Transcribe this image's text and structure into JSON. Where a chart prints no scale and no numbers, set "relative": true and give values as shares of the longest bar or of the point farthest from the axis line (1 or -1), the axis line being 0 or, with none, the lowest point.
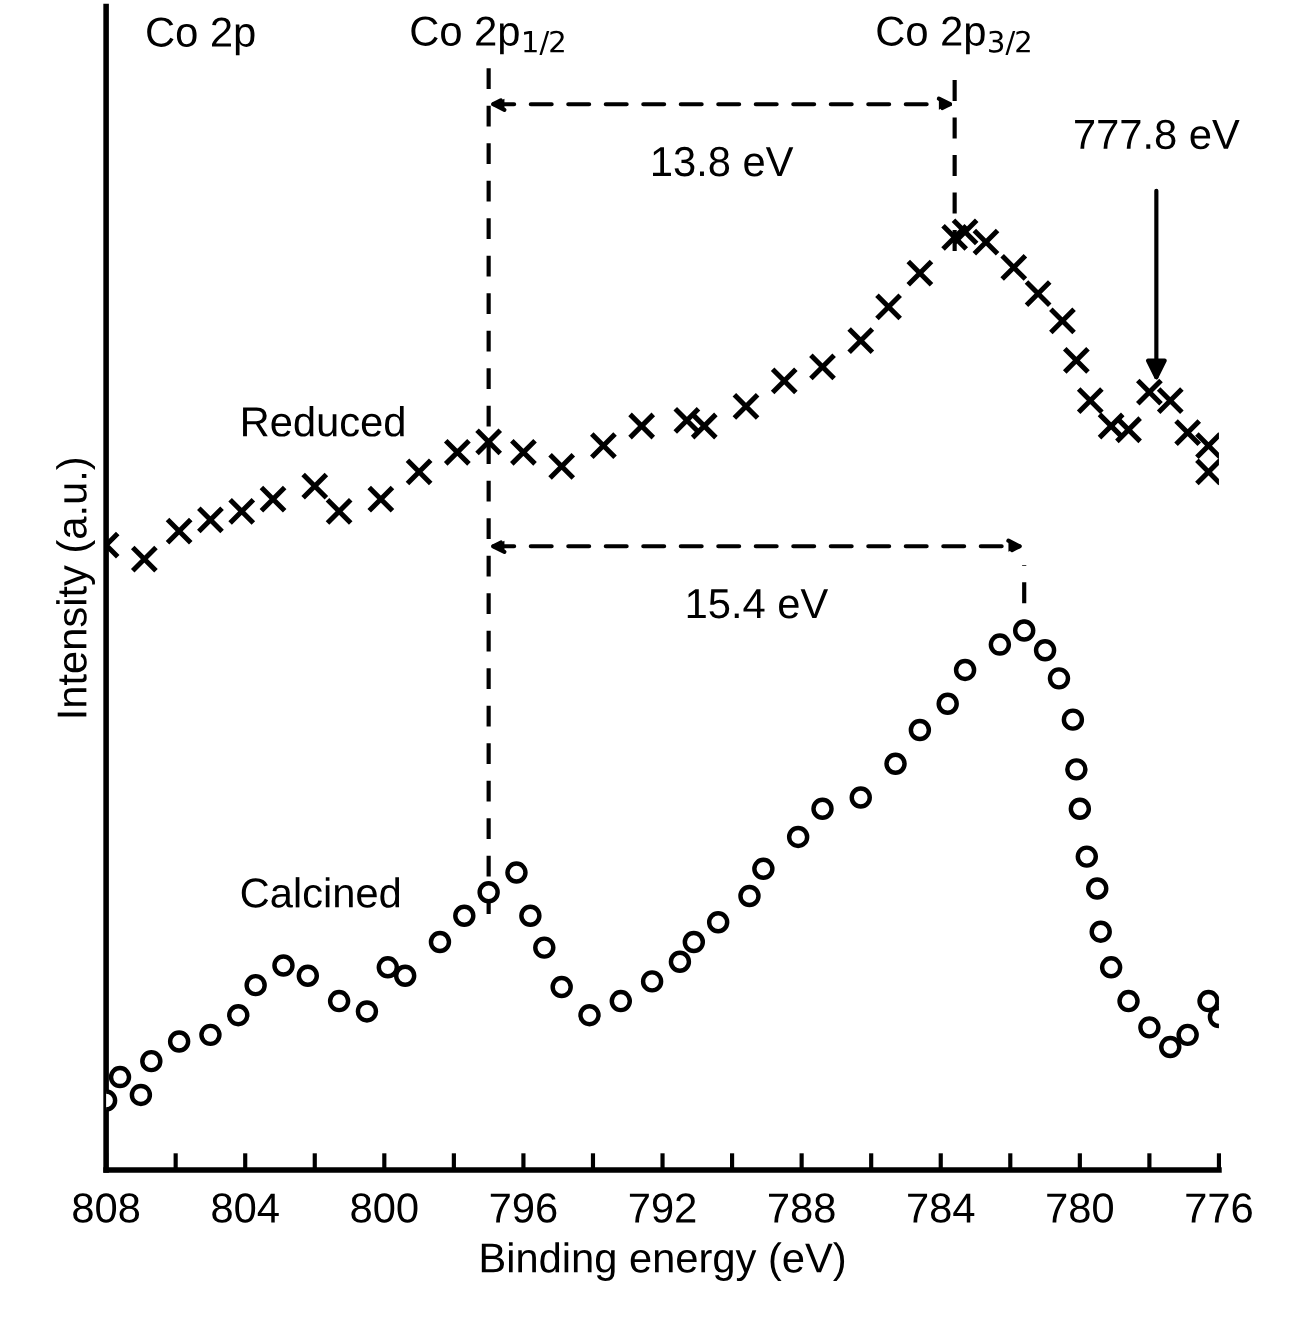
{
  "chart_data": {
    "type": "scatter",
    "relative": true,
    "xlabel": "Binding energy (eV)",
    "ylabel": "Intensity (a.u.)",
    "xlim": [
      808,
      776
    ],
    "xticks": [
      808,
      {
        "value": 806,
        "label": null
      },
      804,
      {
        "value": 802,
        "label": null
      },
      800,
      {
        "value": 798,
        "label": null
      },
      796,
      {
        "value": 794,
        "label": null
      },
      792,
      {
        "value": 790,
        "label": null
      },
      788,
      {
        "value": 786,
        "label": null
      },
      784,
      {
        "value": 782,
        "label": null
      },
      780,
      {
        "value": 778,
        "label": null
      },
      776
    ],
    "tick_labels": "x",
    "grid": false,
    "series": [
      {
        "name": "Reduced",
        "color": "#000000",
        "marker": "cross",
        "x": [
          808.0,
          806.9,
          805.9,
          805.0,
          804.1,
          803.2,
          802.0,
          801.3,
          800.1,
          799.0,
          797.9,
          797.0,
          796.0,
          794.9,
          793.7,
          792.6,
          791.3,
          790.8,
          789.6,
          788.5,
          787.4,
          786.3,
          785.5,
          784.6,
          783.6,
          783.3,
          782.7,
          781.9,
          781.2,
          780.5,
          780.1,
          779.7,
          779.1,
          778.6,
          778.0,
          777.4,
          776.9,
          776.3,
          776.3
        ],
        "values": [
          0.666,
          0.651,
          0.681,
          0.693,
          0.702,
          0.715,
          0.729,
          0.702,
          0.715,
          0.744,
          0.765,
          0.776,
          0.765,
          0.75,
          0.772,
          0.793,
          0.799,
          0.793,
          0.814,
          0.841,
          0.856,
          0.884,
          0.92,
          0.956,
          0.994,
          1.0,
          0.989,
          0.962,
          0.934,
          0.905,
          0.863,
          0.82,
          0.793,
          0.789,
          0.829,
          0.82,
          0.786,
          0.772,
          0.744
        ]
      },
      {
        "name": "Calcined",
        "color": "#000000",
        "marker": "circle",
        "x": [
          808.0,
          807.6,
          807.0,
          806.7,
          805.9,
          805.0,
          804.2,
          803.7,
          802.9,
          802.2,
          801.3,
          800.5,
          799.9,
          799.4,
          798.4,
          797.7,
          797.0,
          796.2,
          795.8,
          795.4,
          794.9,
          794.1,
          793.2,
          792.3,
          791.5,
          791.1,
          790.4,
          789.5,
          789.1,
          788.1,
          787.4,
          786.3,
          785.3,
          784.6,
          783.8,
          783.3,
          782.3,
          781.6,
          781.0,
          780.6,
          780.2,
          780.1,
          780.0,
          779.8,
          779.5,
          779.4,
          779.1,
          778.6,
          778.0,
          777.4,
          776.9,
          776.3,
          776.0
        ],
        "values": [
          0.074,
          0.099,
          0.08,
          0.116,
          0.137,
          0.144,
          0.165,
          0.197,
          0.218,
          0.207,
          0.18,
          0.169,
          0.216,
          0.207,
          0.243,
          0.271,
          0.296,
          0.317,
          0.271,
          0.237,
          0.195,
          0.165,
          0.18,
          0.201,
          0.222,
          0.243,
          0.264,
          0.292,
          0.321,
          0.355,
          0.385,
          0.397,
          0.433,
          0.469,
          0.497,
          0.533,
          0.56,
          0.575,
          0.554,
          0.524,
          0.48,
          0.427,
          0.385,
          0.334,
          0.3,
          0.254,
          0.216,
          0.18,
          0.152,
          0.131,
          0.144,
          0.18,
          0.163
        ]
      }
    ],
    "ref_lines": [
      {
        "axis": "x",
        "value": 797.0,
        "label": "Co 2p$_{1/2}$",
        "line_style": "dashed"
      },
      {
        "axis": "x",
        "value": 783.6,
        "label": "Co 2p$_{3/2}$",
        "line_style": "dashed"
      },
      {
        "axis": "x",
        "value": 781.6,
        "label": null,
        "line_style": "dashed"
      }
    ],
    "annotations": [
      "Co 2p",
      "13.8 eV",
      "15.4 eV",
      {
        "text": "777.8 eV",
        "x": 777.8,
        "y": 0.84
      }
    ]
  }
}
